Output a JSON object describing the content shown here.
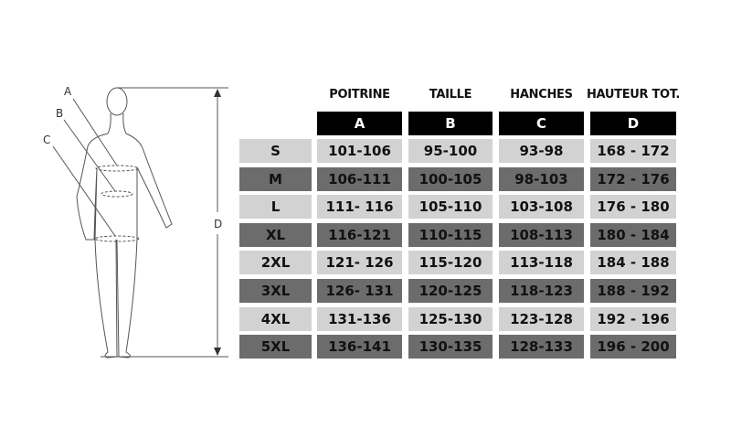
{
  "figure": {
    "labels": {
      "a": "A",
      "b": "B",
      "c": "C",
      "d": "D"
    }
  },
  "table": {
    "column_titles": [
      "POITRINE",
      "TAILLE",
      "HANCHES",
      "HAUTEUR TOT."
    ],
    "column_letters": [
      "A",
      "B",
      "C",
      "D"
    ],
    "rows": [
      {
        "size": "S",
        "values": [
          "101-106",
          "95-100",
          "93-98",
          "168 - 172"
        ]
      },
      {
        "size": "M",
        "values": [
          "106-111",
          "100-105",
          "98-103",
          "172 - 176"
        ]
      },
      {
        "size": "L",
        "values": [
          "111- 116",
          "105-110",
          "103-108",
          "176 - 180"
        ]
      },
      {
        "size": "XL",
        "values": [
          "116-121",
          "110-115",
          "108-113",
          "180 - 184"
        ]
      },
      {
        "size": "2XL",
        "values": [
          "121- 126",
          "115-120",
          "113-118",
          "184 - 188"
        ]
      },
      {
        "size": "3XL",
        "values": [
          "126- 131",
          "120-125",
          "118-123",
          "188 - 192"
        ]
      },
      {
        "size": "4XL",
        "values": [
          "131-136",
          "125-130",
          "123-128",
          "192 - 196"
        ]
      },
      {
        "size": "5XL",
        "values": [
          "136-141",
          "130-135",
          "128-133",
          "196 - 200"
        ]
      }
    ],
    "colors": {
      "header": "#000000",
      "light_row": "#d2d2d2",
      "dark_row": "#6c6c6c"
    }
  }
}
